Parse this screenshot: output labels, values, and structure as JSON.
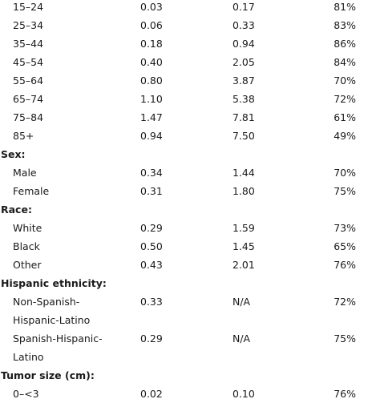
{
  "sections": [
    {
      "header": "",
      "rows": [
        {
          "label": "15–24",
          "c1": "0.03",
          "c2": "0.17",
          "c3": "81%"
        },
        {
          "label": "25–34",
          "c1": "0.06",
          "c2": "0.33",
          "c3": "83%"
        },
        {
          "label": "35–44",
          "c1": "0.18",
          "c2": "0.94",
          "c3": "86%"
        },
        {
          "label": "45–54",
          "c1": "0.40",
          "c2": "2.05",
          "c3": "84%"
        },
        {
          "label": "55–64",
          "c1": "0.80",
          "c2": "3.87",
          "c3": "70%"
        },
        {
          "label": "65–74",
          "c1": "1.10",
          "c2": "5.38",
          "c3": "72%"
        },
        {
          "label": "75–84",
          "c1": "1.47",
          "c2": "7.81",
          "c3": "61%"
        },
        {
          "label": "85+",
          "c1": "0.94",
          "c2": "7.50",
          "c3": "49%"
        }
      ]
    },
    {
      "header": "Sex:",
      "rows": [
        {
          "label": "Male",
          "c1": "0.34",
          "c2": "1.44",
          "c3": "70%"
        },
        {
          "label": "Female",
          "c1": "0.31",
          "c2": "1.80",
          "c3": "75%"
        }
      ]
    },
    {
      "header": "Race:",
      "rows": [
        {
          "label": "White",
          "c1": "0.29",
          "c2": "1.59",
          "c3": "73%"
        },
        {
          "label": "Black",
          "c1": "0.50",
          "c2": "1.45",
          "c3": "65%"
        },
        {
          "label": "Other",
          "c1": "0.43",
          "c2": "2.01",
          "c3": "76%"
        }
      ]
    },
    {
      "header": "Hispanic ethnicity:",
      "rows": [
        {
          "label": "Non-Spanish-Hispanic-Latino",
          "c1": "0.33",
          "c2": "N/A",
          "c3": "72%",
          "two_line": true
        },
        {
          "label": "Spanish-Hispanic-Latino",
          "c1": "0.29",
          "c2": "N/A",
          "c3": "75%",
          "two_line": true
        }
      ]
    },
    {
      "header": "Tumor size (cm):",
      "rows": [
        {
          "label": "0–<3",
          "c1": "0.02",
          "c2": "0.10",
          "c3": "76%"
        }
      ]
    }
  ]
}
